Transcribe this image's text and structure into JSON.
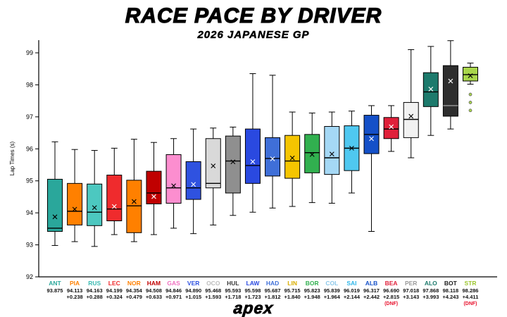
{
  "title": "RACE PACE BY DRIVER",
  "subtitle": "2026 JAPANESE GP",
  "footer_logo": "apex",
  "chart_data": {
    "type": "boxplot",
    "title": "RACE PACE BY DRIVER",
    "subtitle": "2026 JAPANESE GP",
    "ylabel": "Lap Times (s)",
    "ylim": [
      92,
      99
    ],
    "yticks": [
      92,
      93,
      94,
      95,
      96,
      97,
      98,
      99
    ],
    "grid": false,
    "dnf_label": "(DNF)",
    "dnf_color": "#e8112d",
    "drivers": [
      {
        "code": "ANT",
        "value": "93.875",
        "delta": "",
        "dnf": false,
        "color": "#2aa79b",
        "label_color": "#2aa79b",
        "stats": {
          "lo": 92.98,
          "q1": 93.42,
          "med": 93.52,
          "q3": 95.05,
          "hi": 96.22,
          "mean": 93.875
        },
        "outliers": []
      },
      {
        "code": "PIA",
        "value": "94.113",
        "delta": "+0.238",
        "dnf": false,
        "color": "#ff8000",
        "label_color": "#ff8000",
        "stats": {
          "lo": 93.1,
          "q1": 93.62,
          "med": 94.05,
          "q3": 94.92,
          "hi": 95.98,
          "mean": 94.113
        },
        "outliers": []
      },
      {
        "code": "RUS",
        "value": "94.163",
        "delta": "+0.288",
        "dnf": false,
        "color": "#4cc8c0",
        "label_color": "#3bbab2",
        "stats": {
          "lo": 92.95,
          "q1": 93.6,
          "med": 94.02,
          "q3": 94.9,
          "hi": 95.95,
          "mean": 94.163
        },
        "outliers": []
      },
      {
        "code": "LEC",
        "value": "94.199",
        "delta": "+0.324",
        "dnf": false,
        "color": "#ef2b2d",
        "label_color": "#ef2b2d",
        "stats": {
          "lo": 93.32,
          "q1": 93.75,
          "med": 94.12,
          "q3": 95.18,
          "hi": 96.02,
          "mean": 94.199
        },
        "outliers": []
      },
      {
        "code": "NOR",
        "value": "94.354",
        "delta": "+0.479",
        "dnf": false,
        "color": "#ff8000",
        "label_color": "#ff8000",
        "stats": {
          "lo": 93.1,
          "q1": 93.38,
          "med": 94.22,
          "q3": 95.02,
          "hi": 96.3,
          "mean": 94.354
        },
        "outliers": []
      },
      {
        "code": "HAM",
        "value": "94.508",
        "delta": "+0.633",
        "dnf": false,
        "color": "#c00000",
        "label_color": "#c00000",
        "stats": {
          "lo": 93.32,
          "q1": 94.28,
          "med": 94.62,
          "q3": 95.3,
          "hi": 96.2,
          "mean": 94.508
        },
        "outliers": []
      },
      {
        "code": "GAS",
        "value": "94.846",
        "delta": "+0.971",
        "dnf": false,
        "color": "#fc8ecf",
        "label_color": "#f070c0",
        "stats": {
          "lo": 93.52,
          "q1": 94.3,
          "med": 94.78,
          "q3": 95.82,
          "hi": 96.32,
          "mean": 94.846
        },
        "outliers": []
      },
      {
        "code": "VER",
        "value": "94.890",
        "delta": "+1.015",
        "dnf": false,
        "color": "#2f52e0",
        "label_color": "#2f52e0",
        "stats": {
          "lo": 93.35,
          "q1": 94.42,
          "med": 94.78,
          "q3": 95.6,
          "hi": 96.62,
          "mean": 94.89
        },
        "outliers": []
      },
      {
        "code": "OCO",
        "value": "95.468",
        "delta": "+1.593",
        "dnf": false,
        "color": "#d9d9d9",
        "label_color": "#bdbdbd",
        "stats": {
          "lo": 93.62,
          "q1": 94.78,
          "med": 94.92,
          "q3": 96.32,
          "hi": 96.65,
          "mean": 95.468
        },
        "outliers": []
      },
      {
        "code": "HUL",
        "value": "95.593",
        "delta": "+1.718",
        "dnf": false,
        "color": "#8f8f8f",
        "label_color": "#3c3c3c",
        "stats": {
          "lo": 93.92,
          "q1": 94.62,
          "med": 95.62,
          "q3": 96.4,
          "hi": 96.68,
          "mean": 95.593
        },
        "outliers": []
      },
      {
        "code": "LAW",
        "value": "95.598",
        "delta": "+1.723",
        "dnf": false,
        "color": "#2a49e0",
        "label_color": "#2a49e0",
        "stats": {
          "lo": 94.02,
          "q1": 94.92,
          "med": 95.48,
          "q3": 96.62,
          "hi": 98.35,
          "mean": 95.598
        },
        "outliers": []
      },
      {
        "code": "HAD",
        "value": "95.687",
        "delta": "+1.812",
        "dnf": false,
        "color": "#3f6fd8",
        "label_color": "#3f6fd8",
        "stats": {
          "lo": 94.15,
          "q1": 95.15,
          "med": 95.7,
          "q3": 96.35,
          "hi": 98.3,
          "mean": 95.687
        },
        "outliers": []
      },
      {
        "code": "LIN",
        "value": "95.715",
        "delta": "+1.840",
        "dnf": false,
        "color": "#f5c500",
        "label_color": "#d9ae00",
        "stats": {
          "lo": 94.2,
          "q1": 95.08,
          "med": 95.62,
          "q3": 96.42,
          "hi": 97.15,
          "mean": 95.715
        },
        "outliers": []
      },
      {
        "code": "BOR",
        "value": "95.823",
        "delta": "+1.948",
        "dnf": false,
        "color": "#31b04f",
        "label_color": "#31b04f",
        "stats": {
          "lo": 94.32,
          "q1": 95.25,
          "med": 95.88,
          "q3": 96.45,
          "hi": 97.12,
          "mean": 95.823
        },
        "outliers": []
      },
      {
        "code": "COL",
        "value": "95.839",
        "delta": "+1.964",
        "dnf": false,
        "color": "#a5d8f5",
        "label_color": "#8cc8ea",
        "stats": {
          "lo": 94.3,
          "q1": 95.2,
          "med": 95.72,
          "q3": 96.7,
          "hi": 97.15,
          "mean": 95.839
        },
        "outliers": []
      },
      {
        "code": "SAI",
        "value": "96.019",
        "delta": "+2.144",
        "dnf": false,
        "color": "#4fc8f0",
        "label_color": "#2fb6e8",
        "stats": {
          "lo": 94.62,
          "q1": 95.32,
          "med": 96.02,
          "q3": 96.72,
          "hi": 97.18,
          "mean": 96.019
        },
        "outliers": []
      },
      {
        "code": "ALB",
        "value": "96.317",
        "delta": "+2.442",
        "dnf": false,
        "color": "#1450c8",
        "label_color": "#1450c8",
        "stats": {
          "lo": 93.42,
          "q1": 95.85,
          "med": 96.45,
          "q3": 97.05,
          "hi": 97.35,
          "mean": 96.317
        },
        "outliers": []
      },
      {
        "code": "BEA",
        "value": "96.690",
        "delta": "+2.815",
        "dnf": true,
        "color": "#e0203a",
        "label_color": "#e0203a",
        "stats": {
          "lo": 95.92,
          "q1": 96.32,
          "med": 96.62,
          "q3": 96.98,
          "hi": 97.35,
          "mean": 96.69
        },
        "outliers": []
      },
      {
        "code": "PER",
        "value": "97.018",
        "delta": "+3.143",
        "dnf": false,
        "color": "#f2f2f2",
        "label_color": "#9a9a9a",
        "stats": {
          "lo": 95.72,
          "q1": 96.35,
          "med": 96.92,
          "q3": 97.45,
          "hi": 99.1,
          "mean": 97.018
        },
        "outliers": []
      },
      {
        "code": "ALO",
        "value": "97.868",
        "delta": "+3.993",
        "dnf": false,
        "color": "#1d7a6c",
        "label_color": "#1d7a6c",
        "stats": {
          "lo": 96.42,
          "q1": 97.32,
          "med": 97.78,
          "q3": 98.38,
          "hi": 99.2,
          "mean": 97.868
        },
        "outliers": []
      },
      {
        "code": "BOT",
        "value": "98.118",
        "delta": "+4.243",
        "dnf": false,
        "color": "#2e2e2e",
        "label_color": "#1a1a1a",
        "stats": {
          "lo": 96.62,
          "q1": 97.02,
          "med": 97.35,
          "q3": 98.6,
          "hi": 99.38,
          "mean": 98.118
        },
        "outliers": []
      },
      {
        "code": "STR",
        "value": "98.286",
        "delta": "+4.411",
        "dnf": true,
        "color": "#a9d64b",
        "label_color": "#9cc52f",
        "stats": {
          "lo": 98.02,
          "q1": 98.12,
          "med": 98.32,
          "q3": 98.55,
          "hi": 98.68,
          "mean": 98.286
        },
        "outliers": [
          97.7,
          97.45,
          97.2
        ]
      }
    ]
  }
}
